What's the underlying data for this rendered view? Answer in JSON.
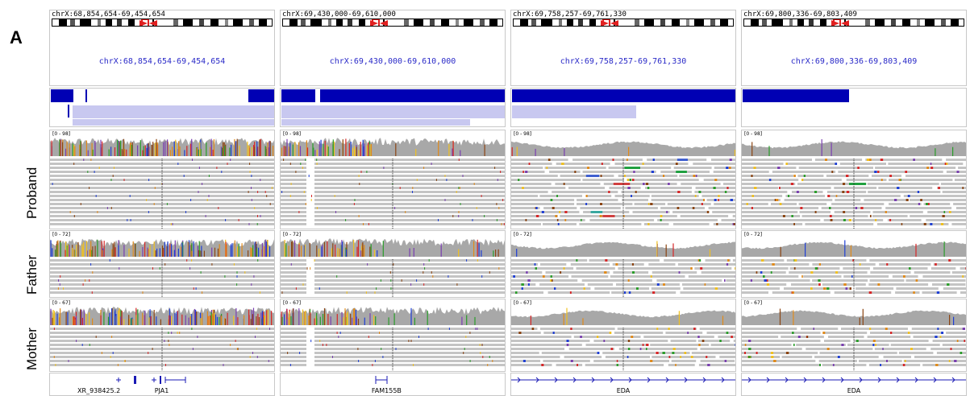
{
  "figure": {
    "panel_letter": "A",
    "samples": [
      {
        "label": "Proband",
        "scale": "[0 - 98]"
      },
      {
        "label": "Father",
        "scale": "[0 - 72]"
      },
      {
        "label": "Mother",
        "scale": "[0 - 67]"
      }
    ],
    "columns": [
      {
        "header": "chrX:68,854,654-69,454,654",
        "locus": "chrX:68,854,654-69,454,654",
        "genes": [
          "XR_938425.2",
          "PJA1"
        ]
      },
      {
        "header": "chrX:69,430,000-69,610,000",
        "locus": "chrX:69,430,000-69,610,000",
        "genes": [
          "FAM155B"
        ]
      },
      {
        "header": "chrX:69,758,257-69,761,330",
        "locus": "chrX:69,758,257-69,761,330",
        "genes": [
          "EDA"
        ]
      },
      {
        "header": "chrX:69,800,336-69,803,409",
        "locus": "chrX:69,800,336-69,803,409",
        "genes": [
          "EDA"
        ]
      }
    ],
    "colors": {
      "locus_text": "#2a2ac8",
      "cnv_bar": "#0000b4",
      "cnv_light": "#c8c8f0",
      "coverage": "#a8a8a8",
      "read": "#c4c4c4",
      "gene": "#1a1ab4"
    }
  }
}
